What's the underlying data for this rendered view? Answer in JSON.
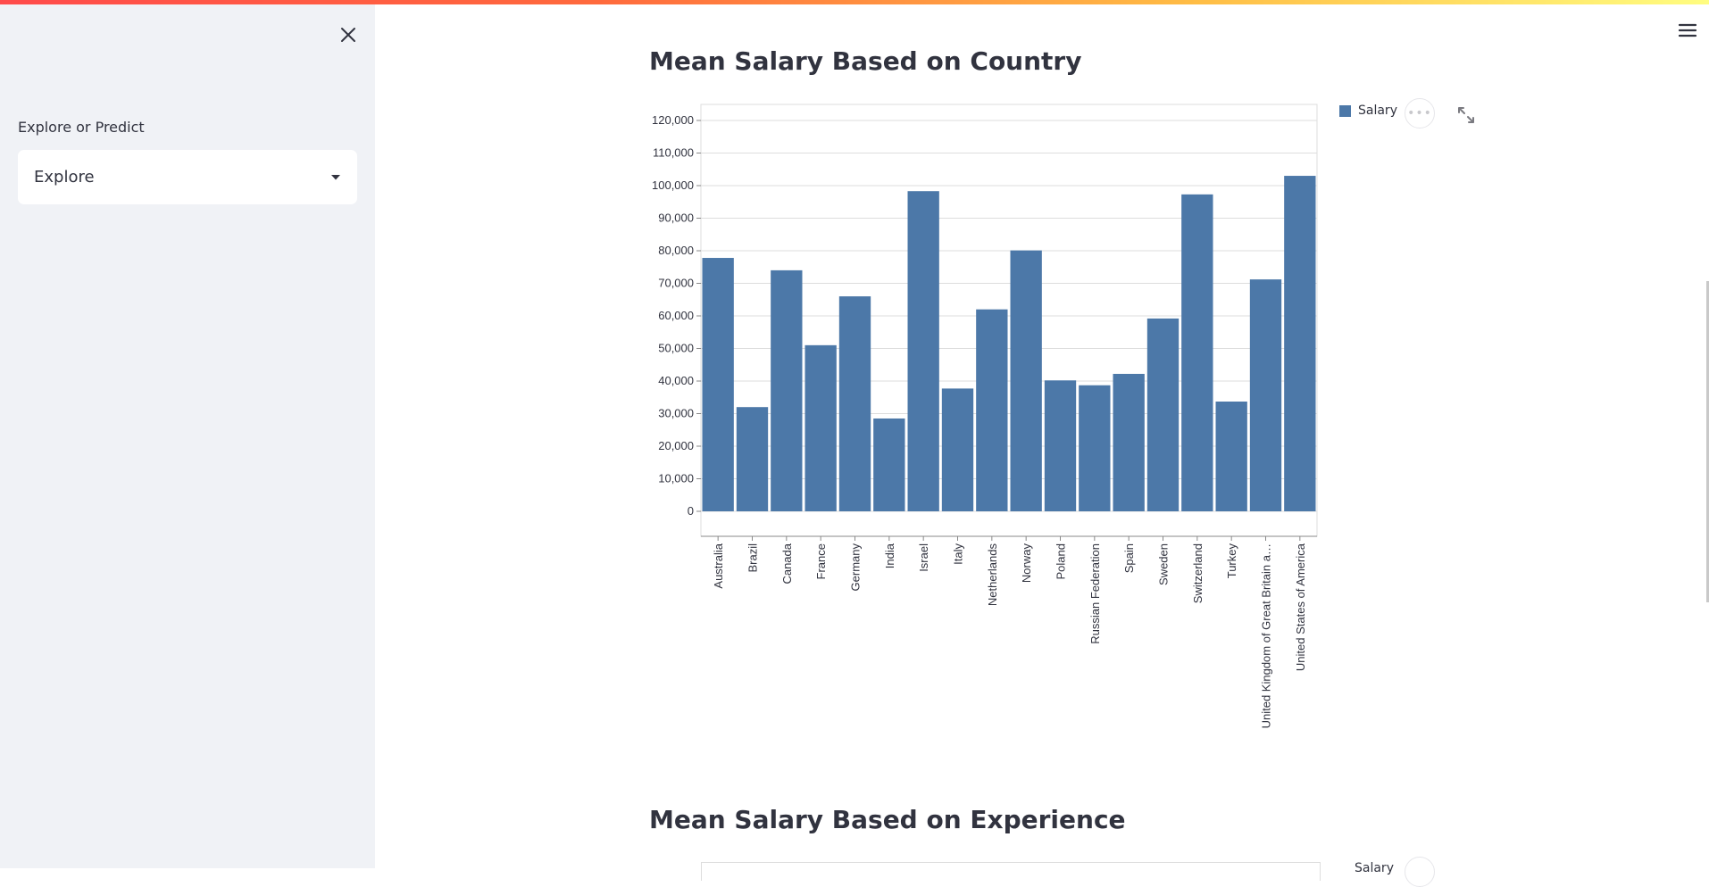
{
  "sidebar": {
    "select_label": "Explore or Predict",
    "select_value": "Explore"
  },
  "icons": {
    "close": "close-icon",
    "dropdown": "chevron-down-icon",
    "menu": "hamburger-menu-icon",
    "more": "ellipsis-icon",
    "expand": "fullscreen-icon"
  },
  "main": {
    "chart1_title": "Mean Salary Based on Country",
    "chart2_title": "Mean Salary Based on Experience",
    "more_label": "•••",
    "chart2_legend": "Salary"
  },
  "chart_data": [
    {
      "type": "bar",
      "title": "Mean Salary Based on Country",
      "xlabel": "",
      "ylabel": "",
      "categories": [
        "Australia",
        "Brazil",
        "Canada",
        "France",
        "Germany",
        "India",
        "Israel",
        "Italy",
        "Netherlands",
        "Norway",
        "Poland",
        "Russian Federation",
        "Spain",
        "Sweden",
        "Switzerland",
        "Turkey",
        "United Kingdom of Great Britain a…",
        "United States of America"
      ],
      "series": [
        {
          "name": "Salary",
          "values": [
            77800,
            32000,
            74000,
            51000,
            66000,
            28500,
            98300,
            37700,
            62000,
            80100,
            40200,
            38700,
            42200,
            59200,
            97300,
            33700,
            71200,
            103000
          ]
        }
      ],
      "ylim": [
        0,
        120000
      ],
      "yticks": [
        0,
        10000,
        20000,
        30000,
        40000,
        50000,
        60000,
        70000,
        80000,
        90000,
        100000,
        110000,
        120000
      ],
      "ytick_labels": [
        "0",
        "10,000",
        "20,000",
        "30,000",
        "40,000",
        "50,000",
        "60,000",
        "70,000",
        "80,000",
        "90,000",
        "100,000",
        "110,000",
        "120,000"
      ],
      "grid": true,
      "legend_position": "top-right",
      "color": "#4c78a8"
    }
  ]
}
